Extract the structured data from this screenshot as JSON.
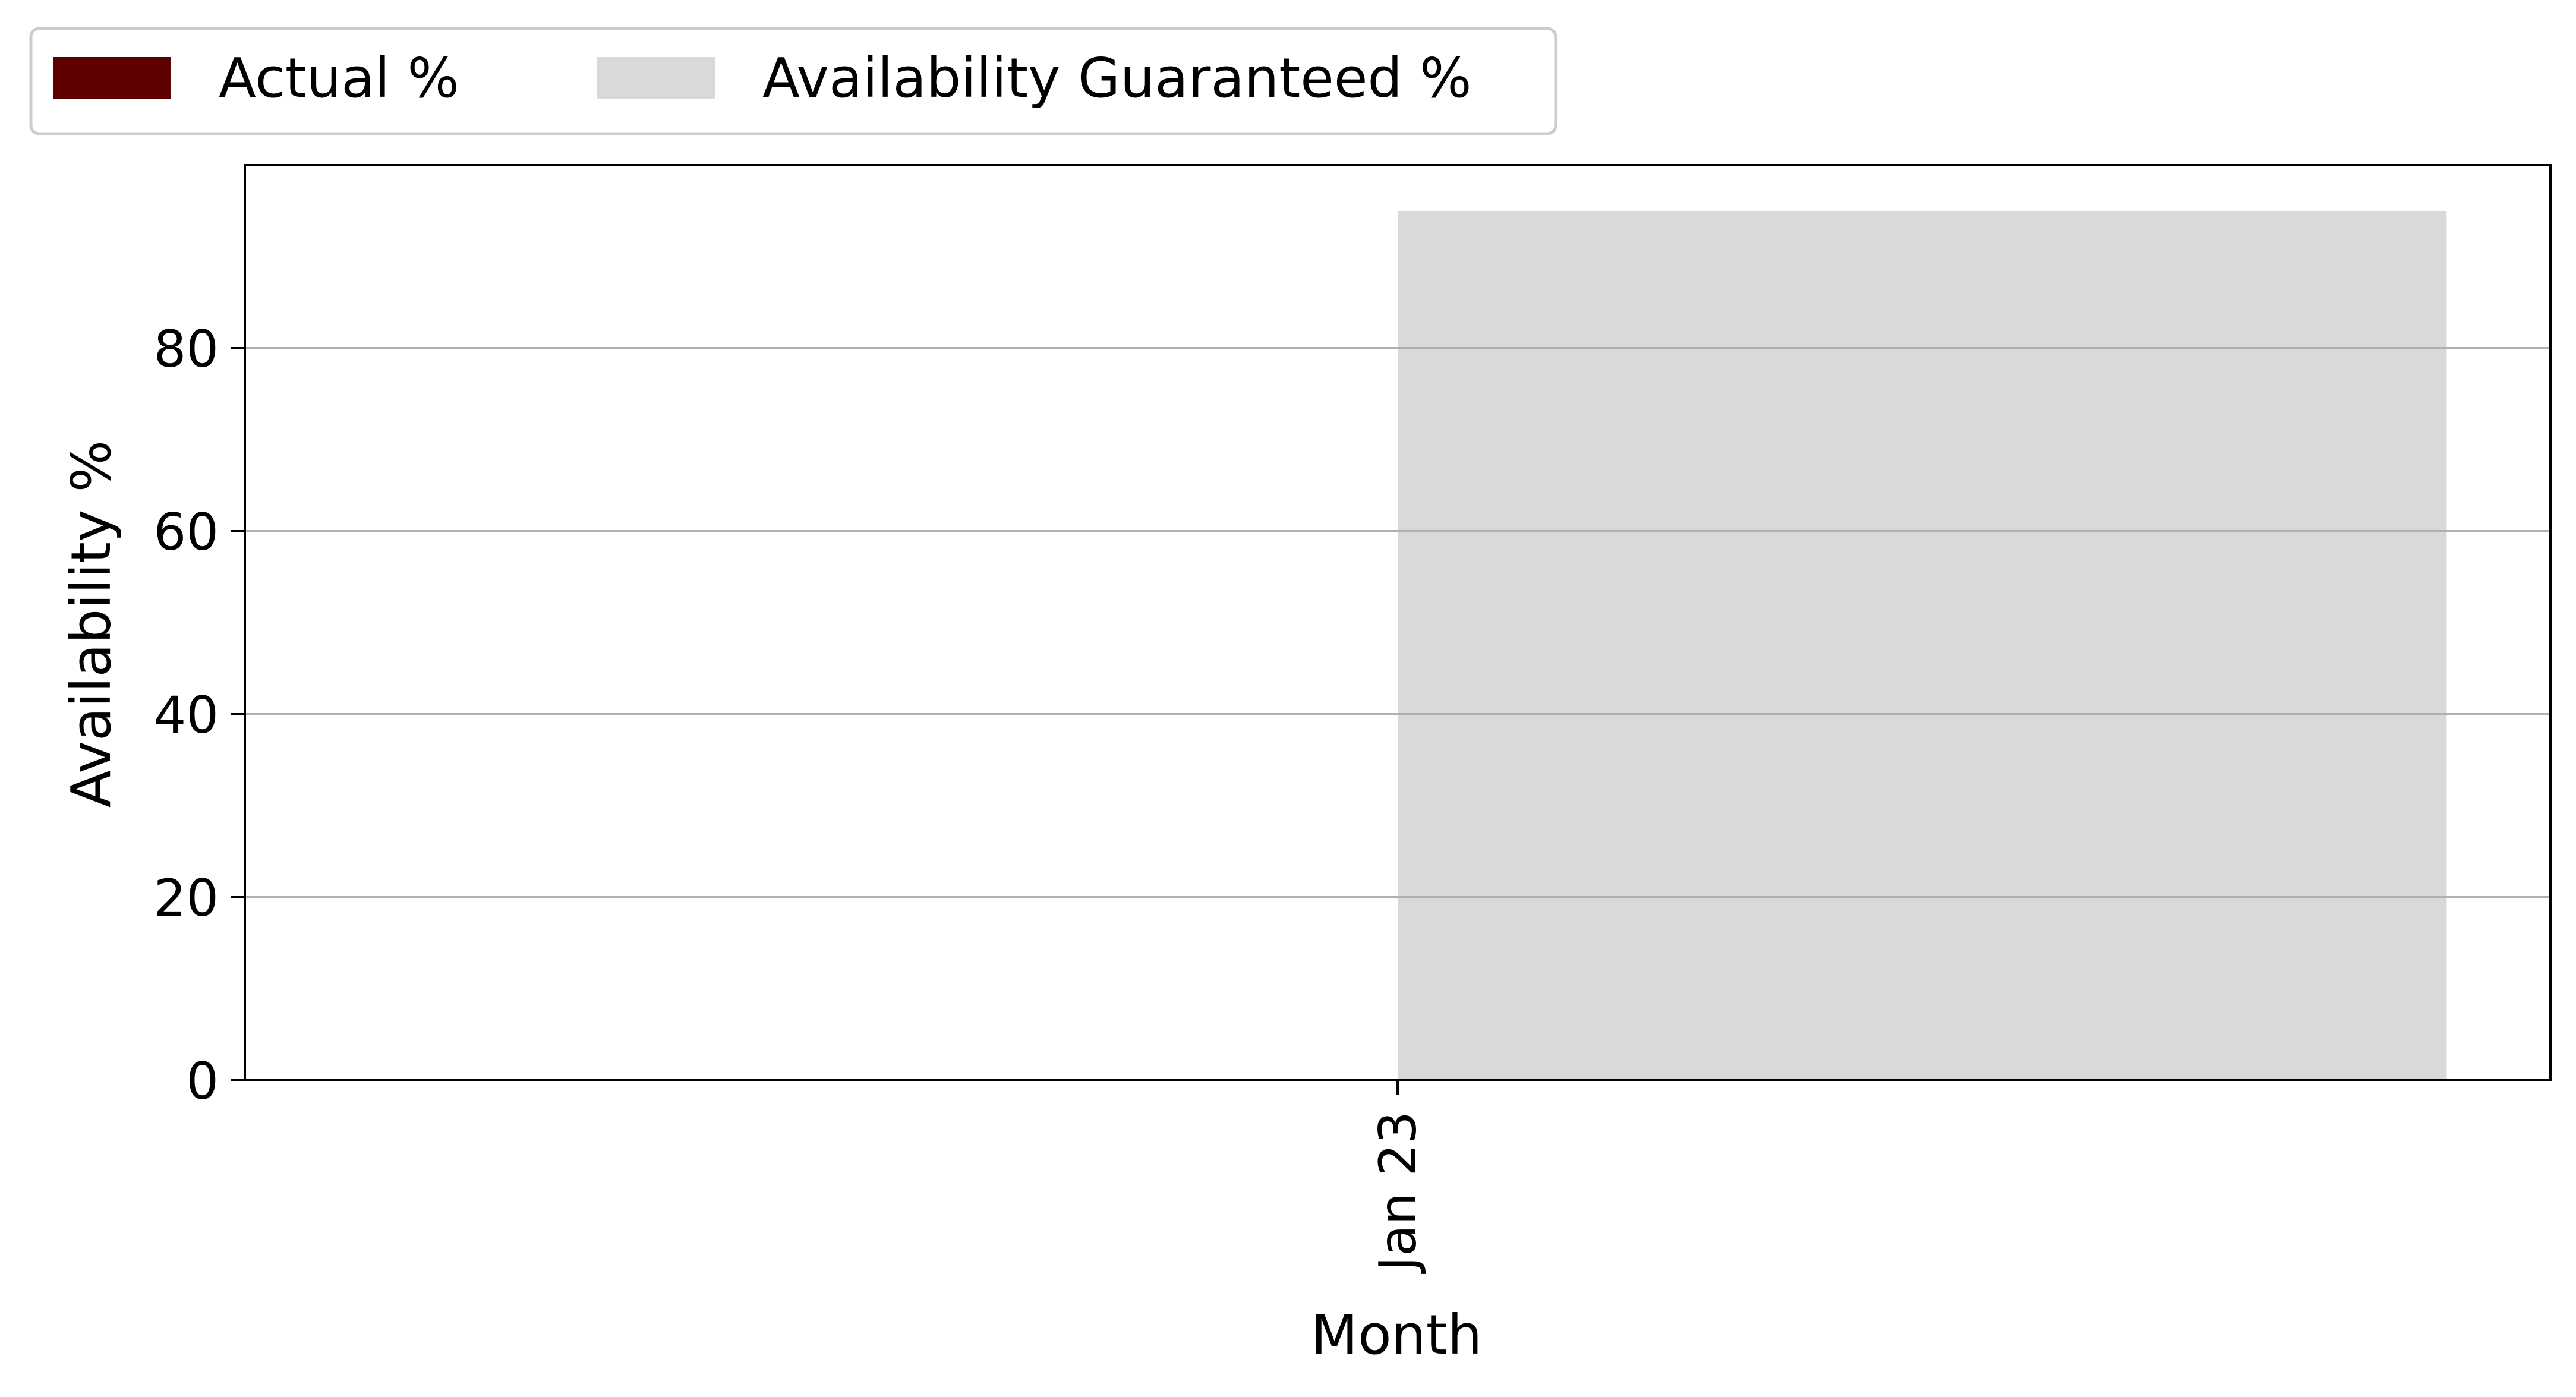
{
  "chart_data": {
    "type": "bar",
    "categories": [
      "Jan 23"
    ],
    "series": [
      {
        "name": "Actual %",
        "values": [
          0
        ],
        "color": "#5c0000"
      },
      {
        "name": "Availability Guaranteed %",
        "values": [
          95
        ],
        "color": "#d9d9d9"
      }
    ],
    "xlabel": "Month",
    "ylabel": "Availability %",
    "ylim": [
      0,
      100
    ],
    "yticks": [
      0,
      20,
      40,
      60,
      80
    ],
    "grid": "y",
    "legend_position": "top-left"
  }
}
